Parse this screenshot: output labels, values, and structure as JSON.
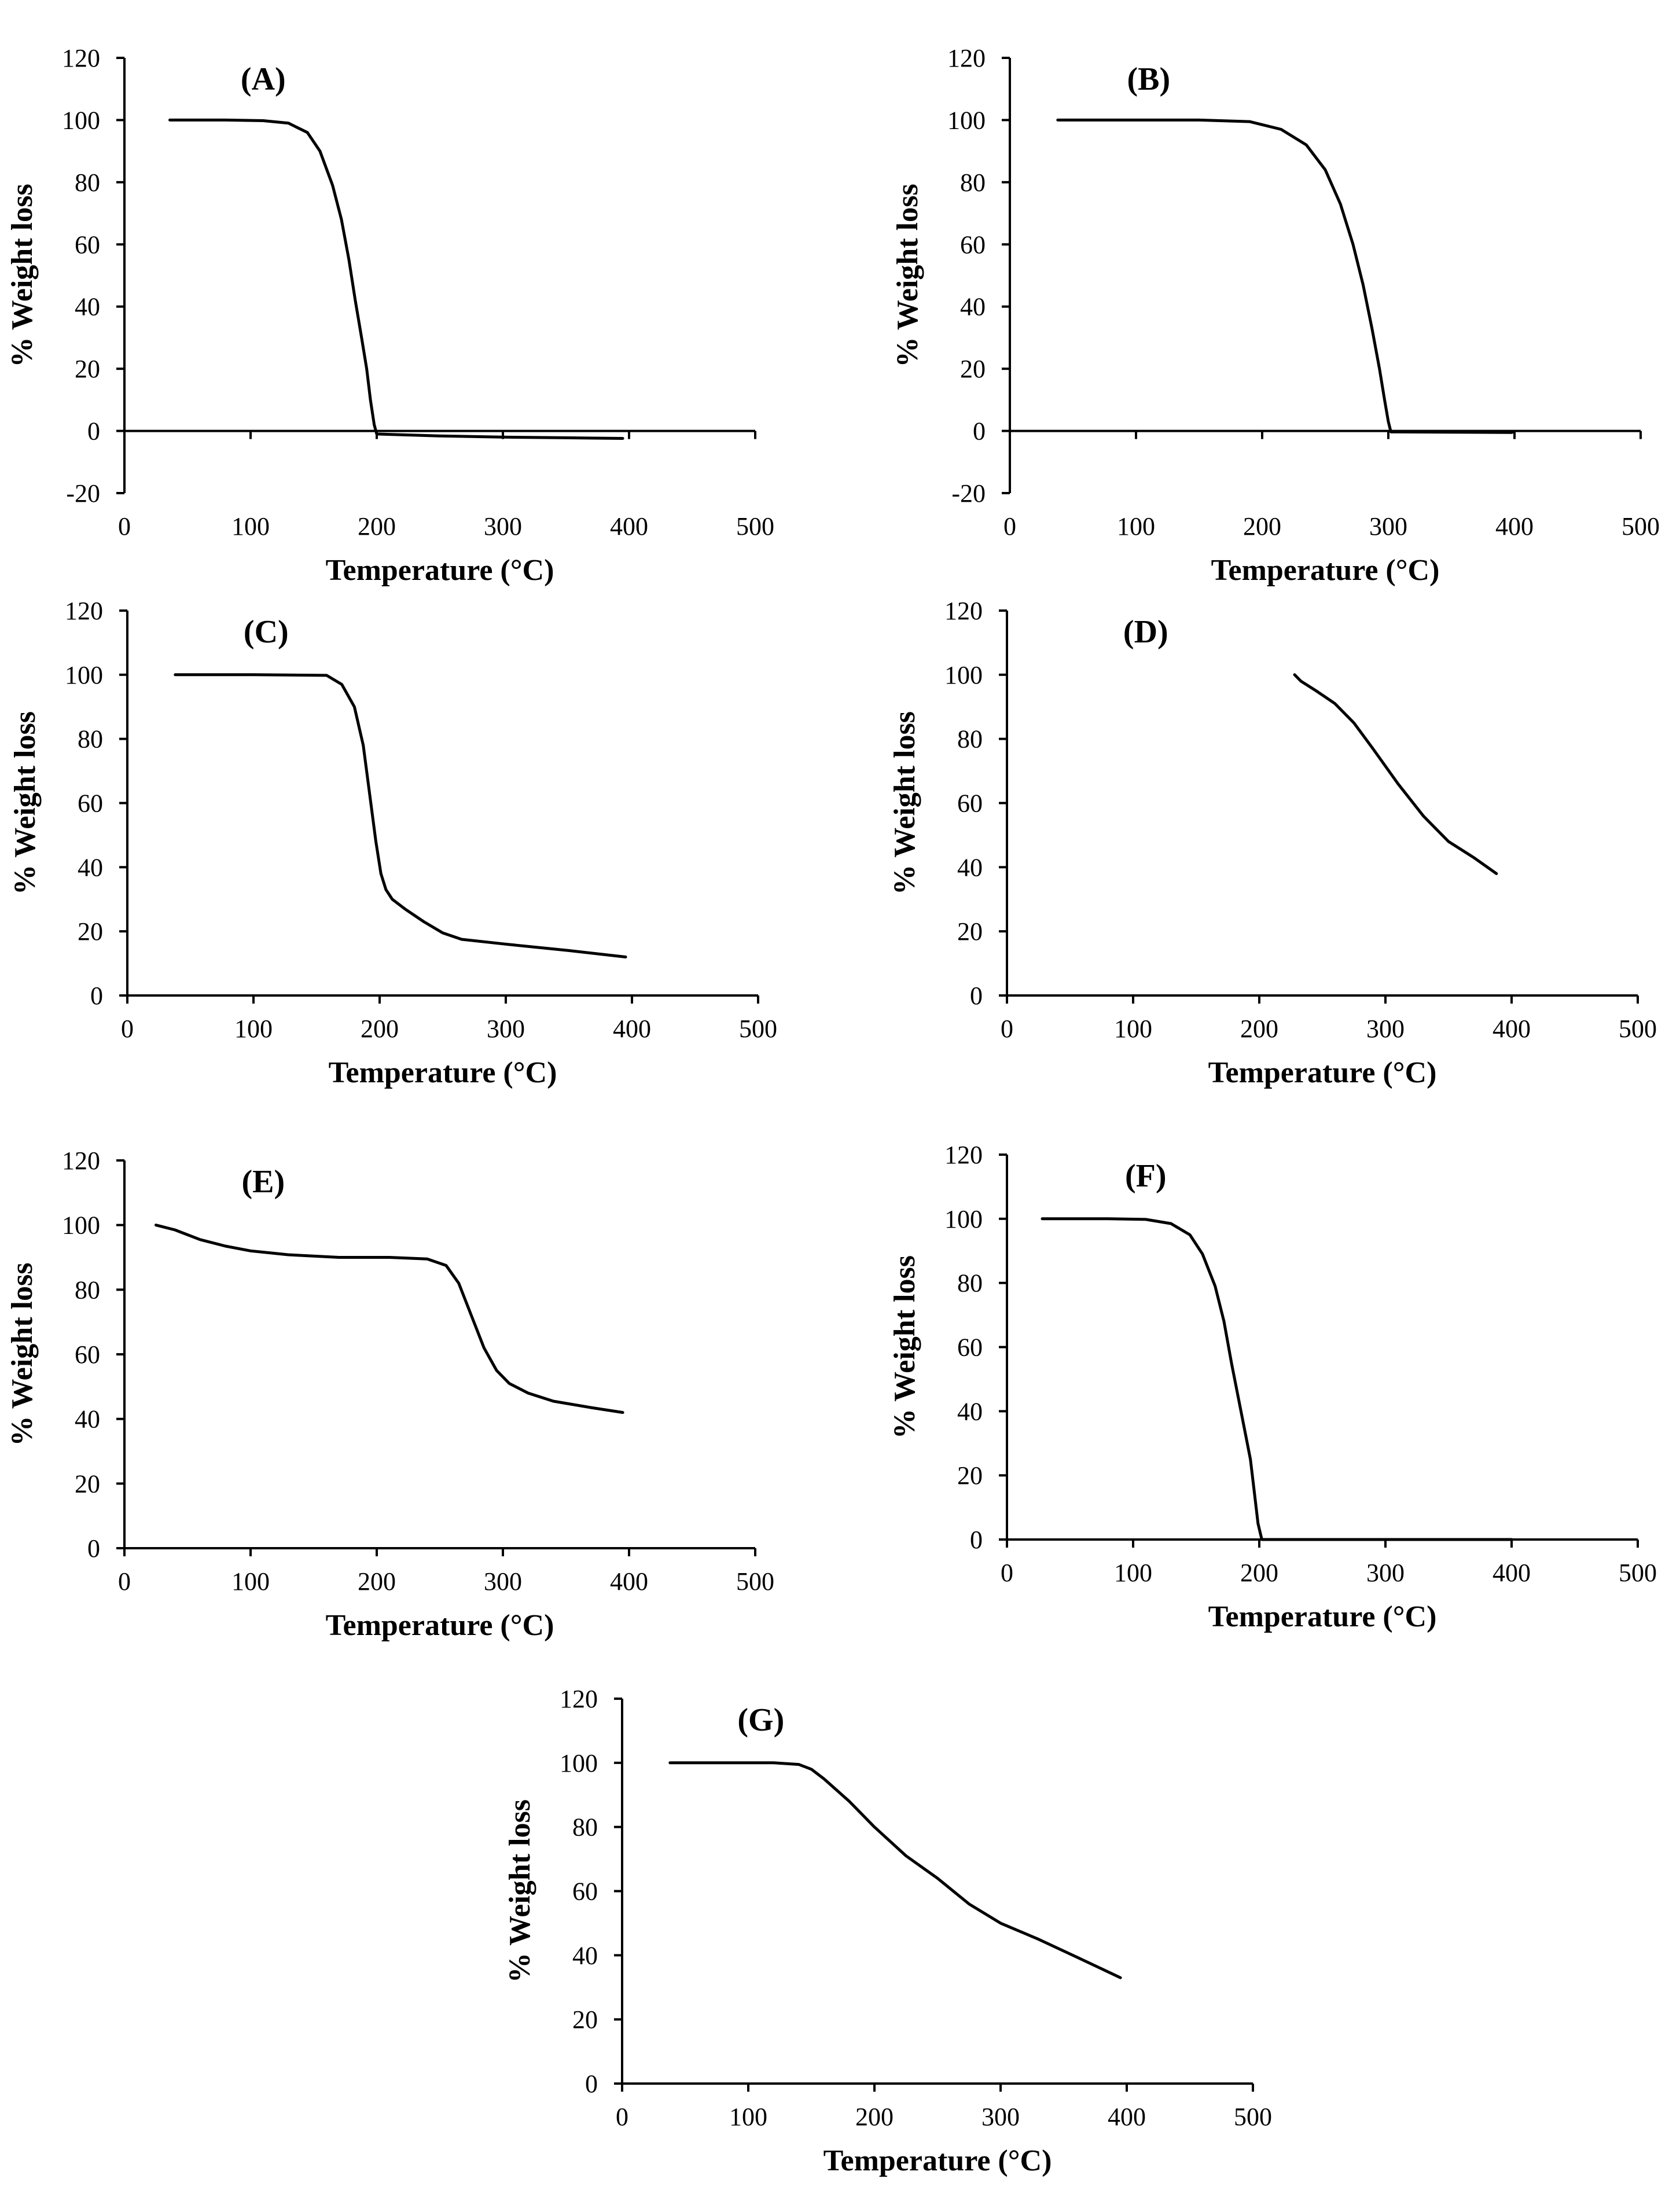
{
  "chart_data": [
    {
      "id": "A",
      "type": "line",
      "title": "(A)",
      "xlabel": "Temperature (°C)",
      "ylabel": "% Weight loss",
      "xlim": [
        0,
        500
      ],
      "ylim": [
        -20,
        120
      ],
      "xticks": [
        0,
        100,
        200,
        300,
        400,
        500
      ],
      "yticks": [
        -20,
        0,
        20,
        40,
        60,
        80,
        100,
        120
      ],
      "grid": false,
      "series": [
        {
          "name": "A",
          "x": [
            36,
            80,
            110,
            130,
            145,
            155,
            165,
            172,
            178,
            183,
            188,
            192,
            195,
            198,
            200,
            250,
            300,
            350,
            395
          ],
          "y": [
            100,
            100,
            99.8,
            99,
            96,
            90,
            79,
            68,
            55,
            42,
            30,
            20,
            10,
            2,
            -1,
            -1.6,
            -2,
            -2.2,
            -2.4
          ]
        }
      ]
    },
    {
      "id": "B",
      "type": "line",
      "title": "(B)",
      "xlabel": "Temperature (°C)",
      "ylabel": "% Weight loss",
      "xlim": [
        0,
        500
      ],
      "ylim": [
        -20,
        120
      ],
      "xticks": [
        0,
        100,
        200,
        300,
        400,
        500
      ],
      "yticks": [
        -20,
        0,
        20,
        40,
        60,
        80,
        100,
        120
      ],
      "grid": false,
      "series": [
        {
          "name": "B",
          "x": [
            38,
            100,
            150,
            190,
            215,
            235,
            250,
            262,
            272,
            280,
            287,
            293,
            297,
            300,
            302,
            350,
            398
          ],
          "y": [
            100,
            100,
            100,
            99.5,
            97,
            92,
            84,
            73,
            60,
            47,
            33,
            20,
            10,
            3,
            -0.3,
            -0.4,
            -0.5
          ]
        }
      ]
    },
    {
      "id": "C",
      "type": "line",
      "title": "(C)",
      "xlabel": "Temperature (°C)",
      "ylabel": "% Weight loss",
      "xlim": [
        0,
        500
      ],
      "ylim": [
        0,
        120
      ],
      "xticks": [
        0,
        100,
        200,
        300,
        400,
        500
      ],
      "yticks": [
        0,
        20,
        40,
        60,
        80,
        100,
        120
      ],
      "grid": false,
      "series": [
        {
          "name": "C",
          "x": [
            38,
            100,
            158,
            170,
            180,
            187,
            192,
            197,
            201,
            205,
            210,
            220,
            235,
            250,
            265,
            300,
            350,
            395
          ],
          "y": [
            100,
            100,
            99.8,
            97,
            90,
            78,
            63,
            48,
            38,
            33,
            30,
            27,
            23,
            19.5,
            17.5,
            16,
            14,
            12
          ]
        }
      ]
    },
    {
      "id": "D",
      "type": "line",
      "title": "(D)",
      "xlabel": "Temperature (°C)",
      "ylabel": "% Weight loss",
      "xlim": [
        0,
        500
      ],
      "ylim": [
        0,
        120
      ],
      "xticks": [
        0,
        100,
        200,
        300,
        400,
        500
      ],
      "yticks": [
        0,
        20,
        40,
        60,
        80,
        100,
        120
      ],
      "grid": false,
      "series": [
        {
          "name": "D",
          "x": [
            228,
            233,
            245,
            260,
            275,
            290,
            310,
            330,
            350,
            370,
            388
          ],
          "y": [
            100,
            98,
            95,
            91,
            85,
            77,
            66,
            56,
            48,
            43,
            38
          ]
        }
      ]
    },
    {
      "id": "E",
      "type": "line",
      "title": "(E)",
      "xlabel": "Temperature (°C)",
      "ylabel": "% Weight loss",
      "xlim": [
        0,
        500
      ],
      "ylim": [
        0,
        120
      ],
      "xticks": [
        0,
        100,
        200,
        300,
        400,
        500
      ],
      "yticks": [
        0,
        20,
        40,
        60,
        80,
        100,
        120
      ],
      "grid": false,
      "series": [
        {
          "name": "E",
          "x": [
            25,
            40,
            60,
            80,
            100,
            130,
            170,
            210,
            240,
            255,
            265,
            275,
            285,
            295,
            305,
            320,
            340,
            370,
            395
          ],
          "y": [
            100,
            98.5,
            95.5,
            93.5,
            92,
            90.8,
            90,
            90,
            89.5,
            87.5,
            82,
            72,
            62,
            55,
            51,
            48,
            45.5,
            43.5,
            42
          ]
        }
      ]
    },
    {
      "id": "F",
      "type": "line",
      "title": "(F)",
      "xlabel": "Temperature (°C)",
      "ylabel": "% Weight loss",
      "xlim": [
        0,
        500
      ],
      "ylim": [
        0,
        120
      ],
      "xticks": [
        0,
        100,
        200,
        300,
        400,
        500
      ],
      "yticks": [
        0,
        20,
        40,
        60,
        80,
        100,
        120
      ],
      "grid": false,
      "series": [
        {
          "name": "F",
          "x": [
            28,
            80,
            110,
            130,
            145,
            155,
            165,
            172,
            178,
            184,
            189,
            193,
            196,
            199,
            202,
            300,
            400
          ],
          "y": [
            100,
            100,
            99.8,
            98.5,
            95,
            89,
            79,
            68,
            55,
            43,
            33,
            25,
            15,
            5,
            0,
            0,
            0
          ]
        }
      ]
    },
    {
      "id": "G",
      "type": "line",
      "title": "(G)",
      "xlabel": "Temperature (°C)",
      "ylabel": "% Weight loss",
      "xlim": [
        0,
        500
      ],
      "ylim": [
        0,
        120
      ],
      "xticks": [
        0,
        100,
        200,
        300,
        400,
        500
      ],
      "yticks": [
        0,
        20,
        40,
        60,
        80,
        100,
        120
      ],
      "grid": false,
      "series": [
        {
          "name": "G",
          "x": [
            38,
            80,
            120,
            140,
            150,
            160,
            180,
            200,
            225,
            250,
            275,
            300,
            330,
            360,
            395
          ],
          "y": [
            100,
            100,
            100,
            99.5,
            98,
            95,
            88,
            80,
            71,
            64,
            56,
            50,
            45,
            39.5,
            33
          ]
        }
      ]
    }
  ]
}
